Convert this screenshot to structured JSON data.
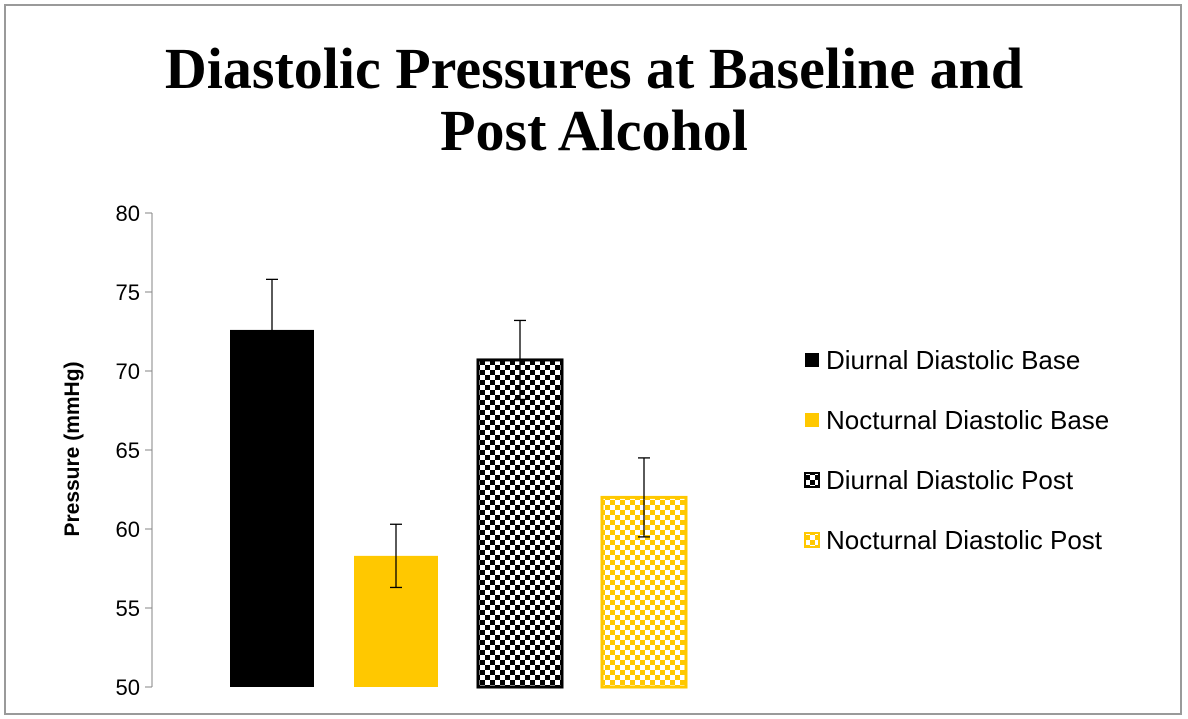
{
  "chart_data": {
    "type": "bar",
    "title_lines": [
      "Diastolic Pressures at Baseline and",
      "Post Alcohol"
    ],
    "xlabel": "",
    "ylabel": "Pressure (mmHg)",
    "ylim": [
      50,
      80
    ],
    "yticks": [
      50,
      55,
      60,
      65,
      70,
      75,
      80
    ],
    "grid": false,
    "legend_position": "right",
    "series": [
      {
        "name": "Diurnal Diastolic Base",
        "value": 72.6,
        "error": 3.2,
        "color": "#000000",
        "pattern": "solid"
      },
      {
        "name": "Nocturnal Diastolic Base",
        "value": 58.3,
        "error": 2.0,
        "color": "#ffc800",
        "pattern": "solid"
      },
      {
        "name": "Diurnal Diastolic Post",
        "value": 70.7,
        "error": 2.5,
        "color": "#000000",
        "pattern": "checker"
      },
      {
        "name": "Nocturnal Diastolic Post",
        "value": 62.0,
        "error": 2.5,
        "color": "#ffc800",
        "pattern": "checker"
      }
    ]
  }
}
